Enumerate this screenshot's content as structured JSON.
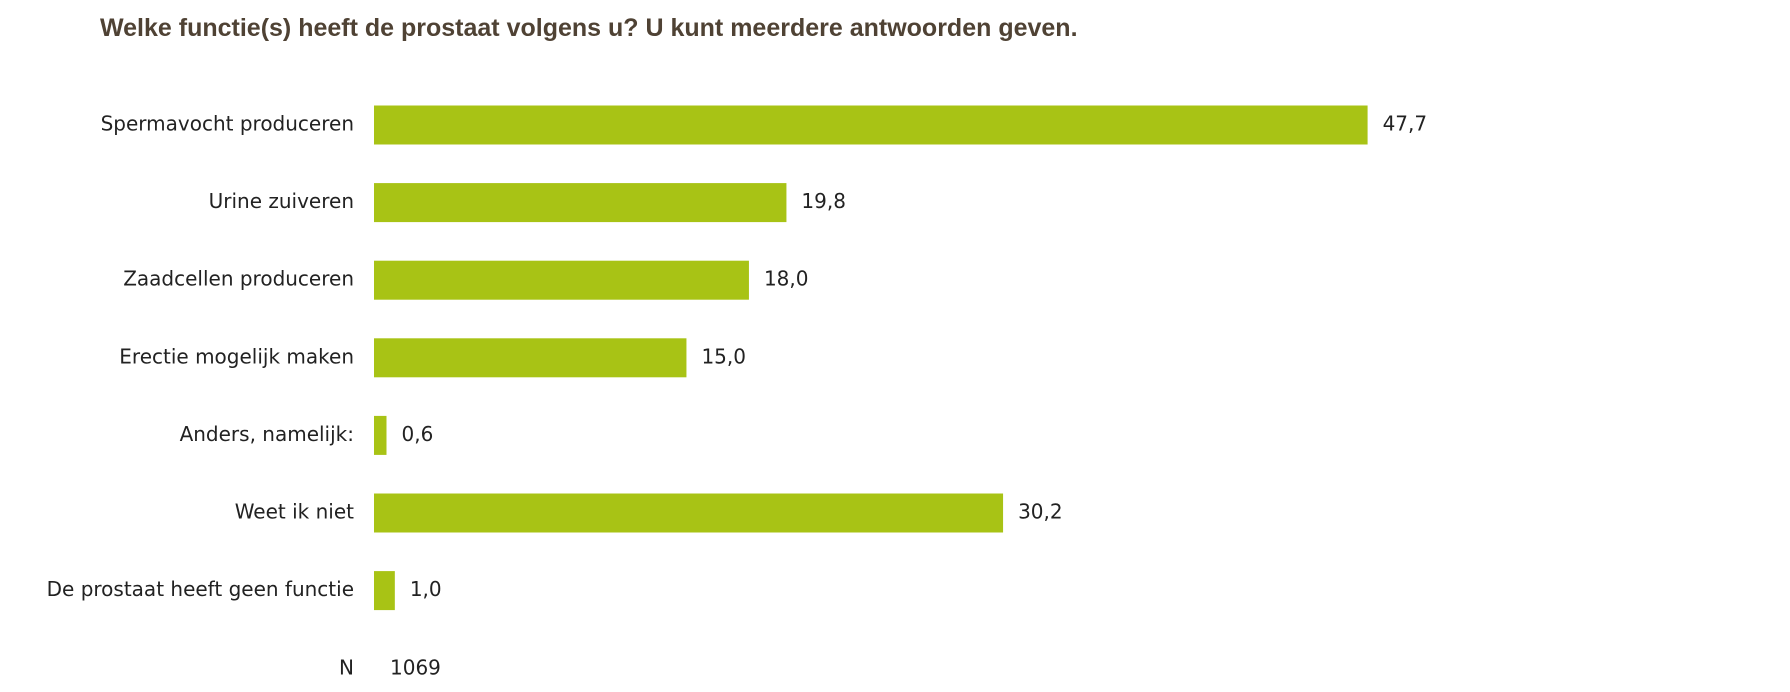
{
  "chart_data": {
    "type": "bar",
    "orientation": "horizontal",
    "title": "Welke functie(s) heeft de prostaat volgens u? U kunt meerdere antwoorden geven.",
    "categories": [
      "Spermavocht produceren",
      "Urine zuiveren",
      "Zaadcellen produceren",
      "Erectie mogelijk maken",
      "Anders, namelijk:",
      "Weet ik niet",
      "De prostaat heeft geen functie"
    ],
    "values": [
      47.7,
      19.8,
      18.0,
      15.0,
      0.6,
      30.2,
      1.0
    ],
    "value_labels": [
      "47,7",
      "19,8",
      "18,0",
      "15,0",
      "0,6",
      "30,2",
      "1,0"
    ],
    "color": "#a8c315",
    "n": {
      "label": "N",
      "value": 1069
    }
  }
}
